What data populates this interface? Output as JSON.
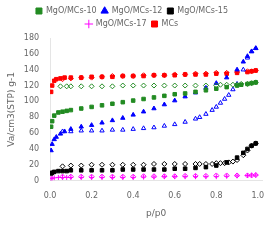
{
  "chart_data": {
    "type": "scatter",
    "xlabel": "p/p0",
    "ylabel": "Va/cm3(STP) g-1",
    "xlim": [
      0.0,
      1.02
    ],
    "ylim": [
      0,
      180
    ],
    "xticks": [
      {
        "value": 0.0,
        "label": "0.0"
      },
      0.2,
      0.4,
      0.6,
      0.8,
      {
        "value": 1.0,
        "label": "1.0"
      }
    ],
    "yticks": [
      0,
      20,
      40,
      60,
      80,
      100,
      120,
      140,
      160,
      180
    ],
    "grid": false,
    "legend": "top",
    "series": [
      {
        "name": "MgO/MCs-10",
        "color": "#228B22",
        "adsorption": {
          "marker": "square",
          "x": [
            0.005,
            0.01,
            0.02,
            0.04,
            0.06,
            0.08,
            0.1,
            0.15,
            0.2,
            0.25,
            0.3,
            0.35,
            0.4,
            0.45,
            0.5,
            0.55,
            0.6,
            0.65,
            0.7,
            0.75,
            0.8,
            0.85,
            0.9,
            0.92,
            0.95,
            0.97,
            0.99
          ],
          "values": [
            68,
            75,
            82,
            86,
            87,
            88,
            89,
            91,
            93,
            95,
            97,
            99,
            101,
            103,
            105,
            107,
            109,
            110,
            112,
            114,
            116,
            118,
            120,
            121,
            122,
            123,
            124
          ]
        },
        "desorption": {
          "marker": "diamond",
          "x": [
            0.99,
            0.97,
            0.95,
            0.92,
            0.9,
            0.88,
            0.85,
            0.82,
            0.8,
            0.75,
            0.7,
            0.65,
            0.6,
            0.55,
            0.5,
            0.45,
            0.4,
            0.35,
            0.3,
            0.25,
            0.2,
            0.15,
            0.1,
            0.08,
            0.05
          ],
          "values": [
            124,
            123,
            122,
            122,
            121,
            121,
            121,
            121,
            120,
            120,
            120,
            120,
            120,
            120,
            120,
            120,
            120,
            120,
            119,
            119,
            119,
            119,
            119,
            119,
            119
          ]
        }
      },
      {
        "name": "MgO/MCs-12",
        "color": "#0000FF",
        "adsorption": {
          "marker": "triangle",
          "x": [
            0.005,
            0.01,
            0.02,
            0.03,
            0.05,
            0.07,
            0.1,
            0.15,
            0.2,
            0.25,
            0.3,
            0.35,
            0.4,
            0.45,
            0.5,
            0.55,
            0.6,
            0.65,
            0.7,
            0.75,
            0.8,
            0.85,
            0.9,
            0.93,
            0.95,
            0.97,
            0.99
          ],
          "values": [
            38,
            46,
            52,
            55,
            59,
            62,
            65,
            68,
            70,
            73,
            76,
            79,
            83,
            87,
            91,
            96,
            101,
            106,
            111,
            117,
            123,
            130,
            140,
            150,
            157,
            163,
            167
          ]
        },
        "desorption": {
          "marker": "triangle",
          "x": [
            0.99,
            0.97,
            0.95,
            0.93,
            0.9,
            0.88,
            0.86,
            0.84,
            0.82,
            0.8,
            0.78,
            0.75,
            0.72,
            0.7,
            0.65,
            0.6,
            0.55,
            0.5,
            0.45,
            0.4,
            0.35,
            0.3,
            0.25,
            0.2,
            0.15,
            0.1,
            0.06
          ],
          "values": [
            167,
            163,
            155,
            140,
            122,
            115,
            108,
            103,
            98,
            93,
            89,
            84,
            80,
            78,
            74,
            71,
            69,
            67,
            66,
            65,
            64,
            64,
            63,
            63,
            63,
            62,
            62
          ]
        }
      },
      {
        "name": "MgO/MCs-15",
        "color": "#000000",
        "adsorption": {
          "marker": "square",
          "x": [
            0.005,
            0.01,
            0.02,
            0.04,
            0.06,
            0.08,
            0.1,
            0.15,
            0.2,
            0.25,
            0.3,
            0.35,
            0.4,
            0.45,
            0.5,
            0.55,
            0.6,
            0.65,
            0.7,
            0.75,
            0.8,
            0.85,
            0.9,
            0.93,
            0.95,
            0.97,
            0.99
          ],
          "values": [
            9,
            10,
            11,
            12,
            12,
            12,
            13,
            13,
            13,
            13,
            13,
            14,
            14,
            14,
            14,
            14,
            15,
            15,
            16,
            17,
            19,
            23,
            29,
            35,
            40,
            44,
            47
          ]
        },
        "desorption": {
          "marker": "diamond",
          "x": [
            0.99,
            0.97,
            0.95,
            0.93,
            0.9,
            0.88,
            0.86,
            0.84,
            0.82,
            0.8,
            0.78,
            0.75,
            0.72,
            0.7,
            0.65,
            0.6,
            0.55,
            0.5,
            0.45,
            0.4,
            0.35,
            0.3,
            0.25,
            0.2,
            0.15,
            0.1,
            0.06
          ],
          "values": [
            47,
            44,
            38,
            32,
            26,
            24,
            23,
            22,
            22,
            22,
            21,
            21,
            21,
            21,
            21,
            21,
            21,
            21,
            20,
            20,
            20,
            20,
            20,
            20,
            19,
            19,
            18
          ]
        }
      },
      {
        "name": "MgO/MCs-17",
        "color": "#FF00FF",
        "adsorption": {
          "marker": "plus",
          "x": [
            0.005,
            0.01,
            0.02,
            0.04,
            0.06,
            0.08,
            0.1,
            0.15,
            0.2,
            0.25,
            0.3,
            0.35,
            0.4,
            0.45,
            0.5,
            0.55,
            0.6,
            0.65,
            0.7,
            0.75,
            0.8,
            0.85,
            0.9,
            0.95,
            0.97,
            0.99
          ],
          "values": [
            2.5,
            3,
            3.5,
            4,
            4,
            4,
            4,
            4,
            4,
            4,
            4,
            4,
            4,
            4.5,
            4.5,
            5,
            5,
            5,
            5,
            5,
            5,
            5.5,
            6,
            6.5,
            7,
            7
          ]
        },
        "desorption": {
          "marker": "diamond",
          "x": [
            0.99,
            0.97,
            0.95,
            0.9,
            0.85,
            0.8,
            0.75,
            0.7,
            0.65,
            0.6,
            0.55,
            0.5,
            0.45,
            0.4,
            0.35,
            0.3,
            0.25,
            0.2,
            0.15,
            0.1,
            0.06
          ],
          "values": [
            7,
            6.5,
            6.5,
            6.5,
            6.5,
            6.5,
            6,
            6,
            6,
            5.5,
            5.5,
            5.5,
            5.5,
            5,
            5,
            5,
            5,
            5,
            5,
            5,
            5
          ]
        }
      },
      {
        "name": "MCs",
        "color": "#FF0000",
        "adsorption": {
          "marker": "square",
          "x": [
            0.005,
            0.01,
            0.02,
            0.03,
            0.05,
            0.07,
            0.1,
            0.15,
            0.2,
            0.25,
            0.3,
            0.35,
            0.4,
            0.45,
            0.5,
            0.55,
            0.6,
            0.65,
            0.7,
            0.75,
            0.8,
            0.85,
            0.9,
            0.95,
            0.97,
            0.99
          ],
          "values": [
            112,
            120,
            126,
            128,
            129,
            130,
            130,
            130,
            131,
            131,
            131,
            132,
            132,
            132,
            133,
            133,
            133,
            134,
            134,
            134,
            135,
            135,
            136,
            137,
            138,
            139
          ]
        },
        "desorption": {
          "marker": "diamond",
          "x": [
            0.99,
            0.97,
            0.95,
            0.9,
            0.85,
            0.8,
            0.75,
            0.7,
            0.65,
            0.6,
            0.55,
            0.5,
            0.45,
            0.4,
            0.35,
            0.3,
            0.25,
            0.2,
            0.15,
            0.1,
            0.06
          ],
          "values": [
            139,
            138,
            138,
            137,
            136,
            136,
            135,
            135,
            134,
            134,
            133,
            133,
            133,
            132,
            132,
            132,
            131,
            130,
            130,
            129,
            128
          ]
        }
      }
    ]
  }
}
